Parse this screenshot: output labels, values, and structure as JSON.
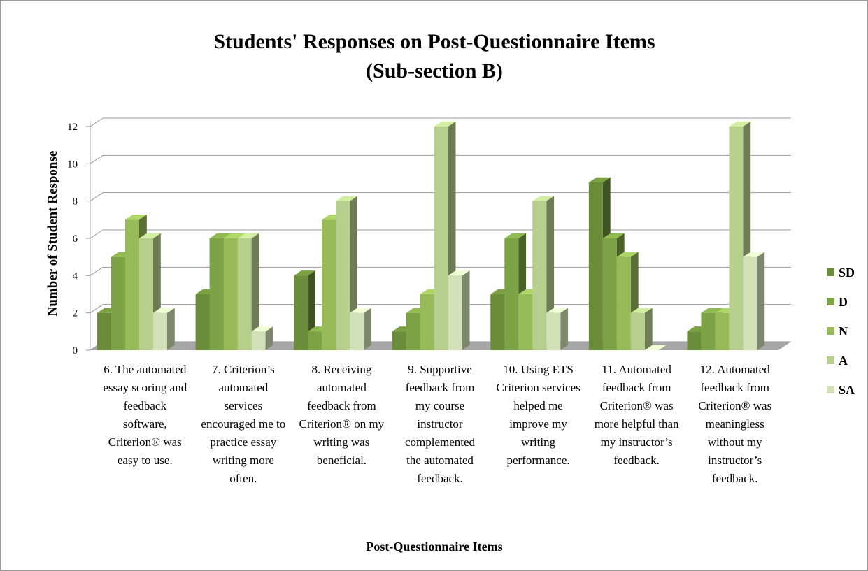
{
  "chart_data": {
    "type": "bar3d",
    "title": "Students' Responses on Post-Questionnaire Items",
    "subtitle": "(Sub-section B)",
    "ylabel": "Number of Student Response",
    "xlabel": "Post-Questionnaire Items",
    "categories": [
      "6. The automated essay scoring and feedback software, Criterion® was easy to use.",
      "7. Criterion’s automated services encouraged me to practice essay writing more often.",
      "8. Receiving automated feedback from Criterion® on my writing was beneficial.",
      "9. Supportive feedback from my course instructor complemented the automated feedback.",
      "10. Using ETS Criterion services helped me improve my writing performance.",
      "11. Automated feedback from Criterion® was more helpful than my instructor’s feedback.",
      "12. Automated feedback from Criterion® was meaningless without my instructor’s feedback."
    ],
    "series": [
      {
        "name": "SD",
        "color": "#6b8c3a",
        "values": [
          2,
          3,
          4,
          1,
          3,
          9,
          1
        ]
      },
      {
        "name": "D",
        "color": "#7ca346",
        "values": [
          5,
          6,
          1,
          2,
          6,
          6,
          2
        ]
      },
      {
        "name": "N",
        "color": "#98bb5a",
        "values": [
          7,
          6,
          7,
          3,
          3,
          5,
          2
        ]
      },
      {
        "name": "A",
        "color": "#b6cf8c",
        "values": [
          6,
          6,
          8,
          12,
          8,
          2,
          12
        ]
      },
      {
        "name": "SA",
        "color": "#d2e1b8",
        "values": [
          2,
          1,
          2,
          4,
          2,
          0,
          5
        ]
      }
    ],
    "ylim": [
      0,
      12
    ],
    "yticks": [
      0,
      2,
      4,
      6,
      8,
      10,
      12
    ],
    "grid": true,
    "legend": "right"
  }
}
